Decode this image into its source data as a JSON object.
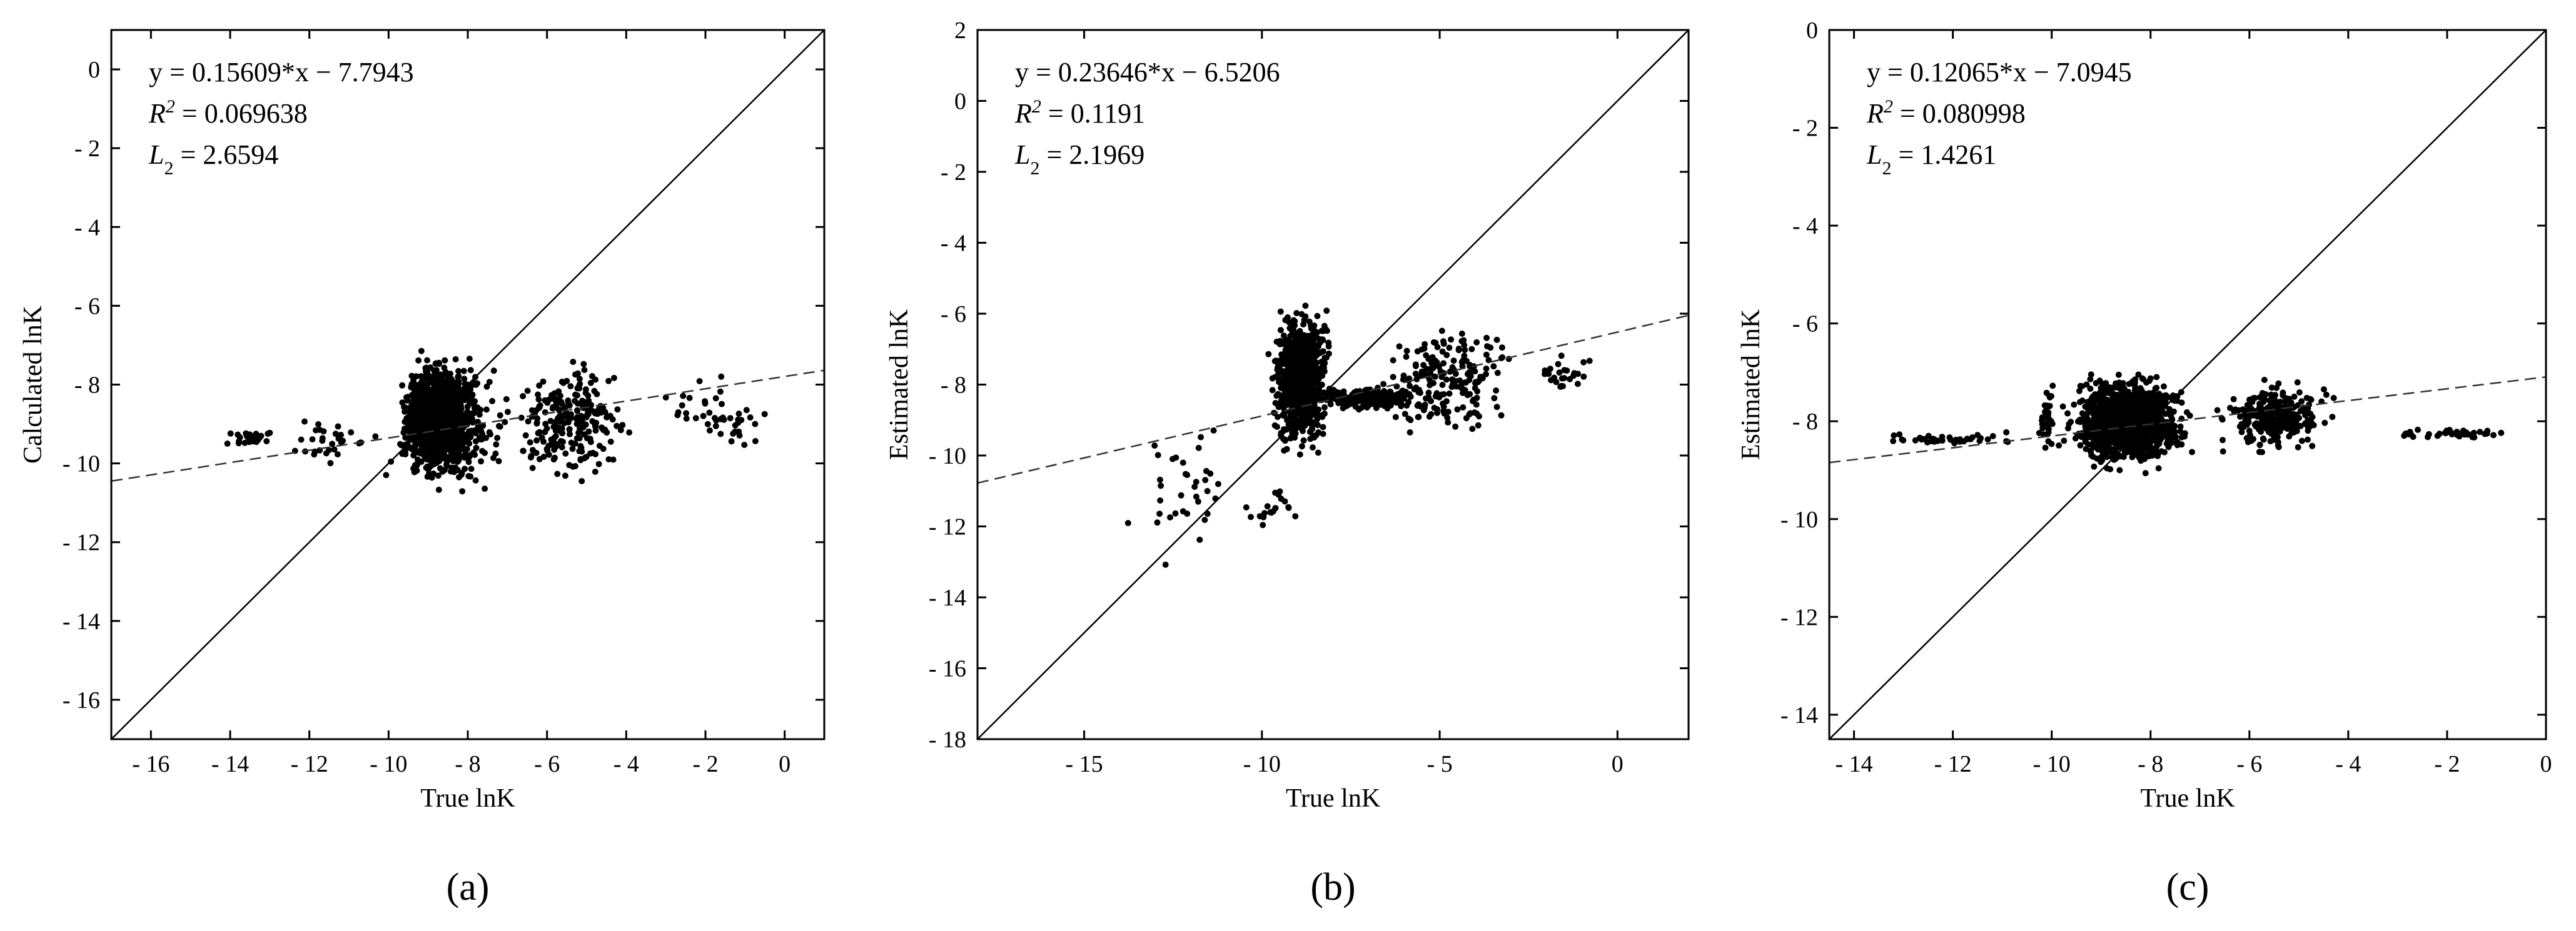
{
  "colors": {
    "axis": "#000000",
    "points": "#000000",
    "identity_line": "#000000",
    "fit_line": "#333333",
    "background": "#ffffff"
  },
  "chart_data": [
    {
      "type": "scatter",
      "panel_label": "(a)",
      "xlabel": "True lnK",
      "ylabel": "Calculated lnK",
      "xlim": [
        -17,
        1
      ],
      "ylim": [
        -17,
        1
      ],
      "xticks": [
        -16,
        -14,
        -12,
        -10,
        -8,
        -6,
        -4,
        -2,
        0
      ],
      "yticks": [
        -16,
        -14,
        -12,
        -10,
        -8,
        -6,
        -4,
        -2,
        0
      ],
      "xtick_labels": [
        "- 16",
        "- 14",
        "- 12",
        "- 10",
        "- 8",
        "- 6",
        "- 4",
        "- 2",
        "0"
      ],
      "ytick_labels": [
        "- 16",
        "- 14",
        "- 12",
        "- 10",
        "- 8",
        "- 6",
        "- 4",
        "- 2",
        "0"
      ],
      "annotation": {
        "equation": "y = 0.15609*x − 7.7943",
        "r2": "0.069638",
        "l2": "2.6594"
      },
      "fit": {
        "slope": 0.15609,
        "intercept": -7.7943
      },
      "grid": false,
      "clusters": [
        {
          "x": [
            -10,
            -7.6
          ],
          "y": [
            -10.8,
            -7.0
          ],
          "n": 850
        },
        {
          "x": [
            -10.2,
            -6.6
          ],
          "y": [
            -11.3,
            -6.6
          ],
          "n": 350
        },
        {
          "x": [
            -7.5,
            -3.5
          ],
          "y": [
            -11.0,
            -6.8
          ],
          "n": 240
        },
        {
          "x": [
            -3.5,
            0
          ],
          "y": [
            -10.0,
            -7.5
          ],
          "n": 45
        },
        {
          "x": [
            -14.3,
            -12.8
          ],
          "y": [
            -9.6,
            -9.1
          ],
          "n": 28
        },
        {
          "x": [
            -12.8,
            -10
          ],
          "y": [
            -10.2,
            -8.6
          ],
          "n": 30
        }
      ]
    },
    {
      "type": "scatter",
      "panel_label": "(b)",
      "xlabel": "True lnK",
      "ylabel": "Estimated lnK",
      "xlim": [
        -18,
        2
      ],
      "ylim": [
        -18,
        2
      ],
      "xticks": [
        -15,
        -10,
        -5,
        0
      ],
      "yticks": [
        -18,
        -16,
        -14,
        -12,
        -10,
        -8,
        -6,
        -4,
        -2,
        0,
        2
      ],
      "xtick_labels": [
        "- 15",
        "- 10",
        "- 5",
        "0"
      ],
      "ytick_labels": [
        "- 18",
        "- 16",
        "- 14",
        "- 12",
        "- 10",
        "- 8",
        "- 6",
        "- 4",
        "- 2",
        "0",
        "2"
      ],
      "annotation": {
        "equation": "y = 0.23646*x − 6.5206",
        "r2": "0.1191",
        "l2": "2.1969"
      },
      "fit": {
        "slope": 0.23646,
        "intercept": -6.5206
      },
      "grid": false,
      "clusters": [
        {
          "x": [
            -10,
            -7.8
          ],
          "y": [
            -10.5,
            -5.2
          ],
          "n": 800
        },
        {
          "x": [
            -9,
            -5
          ],
          "y": [
            -8.8,
            -8.0
          ],
          "n": 220
        },
        {
          "x": [
            -7.5,
            -2
          ],
          "y": [
            -10,
            -5.8
          ],
          "n": 200
        },
        {
          "x": [
            -2.5,
            -0.5
          ],
          "y": [
            -8.5,
            -6.8
          ],
          "n": 25
        },
        {
          "x": [
            -14.5,
            -10
          ],
          "y": [
            -14,
            -8
          ],
          "n": 35
        },
        {
          "x": [
            -11.5,
            -8
          ],
          "y": [
            -12.5,
            -10.5
          ],
          "n": 20
        }
      ]
    },
    {
      "type": "scatter",
      "panel_label": "(c)",
      "xlabel": "True lnK",
      "ylabel": "Estimated lnK",
      "xlim": [
        -14.5,
        0
      ],
      "ylim": [
        -14.5,
        0
      ],
      "xticks": [
        -14,
        -12,
        -10,
        -8,
        -6,
        -4,
        -2,
        0
      ],
      "yticks": [
        -14,
        -12,
        -10,
        -8,
        -6,
        -4,
        -2,
        0
      ],
      "xtick_labels": [
        "- 14",
        "- 12",
        "- 10",
        "- 8",
        "- 6",
        "- 4",
        "- 2",
        "0"
      ],
      "ytick_labels": [
        "- 14",
        "- 12",
        "- 10",
        "- 8",
        "- 6",
        "- 4",
        "- 2",
        "0"
      ],
      "annotation": {
        "equation": "y = 0.12065*x − 7.0945",
        "r2": "0.080998",
        "l2": "1.4261"
      },
      "fit": {
        "slope": 0.12065,
        "intercept": -7.0945
      },
      "grid": false,
      "clusters": [
        {
          "x": [
            -10,
            -7
          ],
          "y": [
            -9.2,
            -6.8
          ],
          "n": 1200
        },
        {
          "x": [
            -7,
            -4
          ],
          "y": [
            -8.8,
            -7.0
          ],
          "n": 250
        },
        {
          "x": [
            -4,
            0
          ],
          "y": [
            -8.4,
            -8.1
          ],
          "n": 40
        },
        {
          "x": [
            -14.4,
            -10
          ],
          "y": [
            -8.5,
            -8.2
          ],
          "n": 40
        },
        {
          "x": [
            -10.3,
            -9.9
          ],
          "y": [
            -9.0,
            -7.0
          ],
          "n": 40
        }
      ]
    }
  ]
}
